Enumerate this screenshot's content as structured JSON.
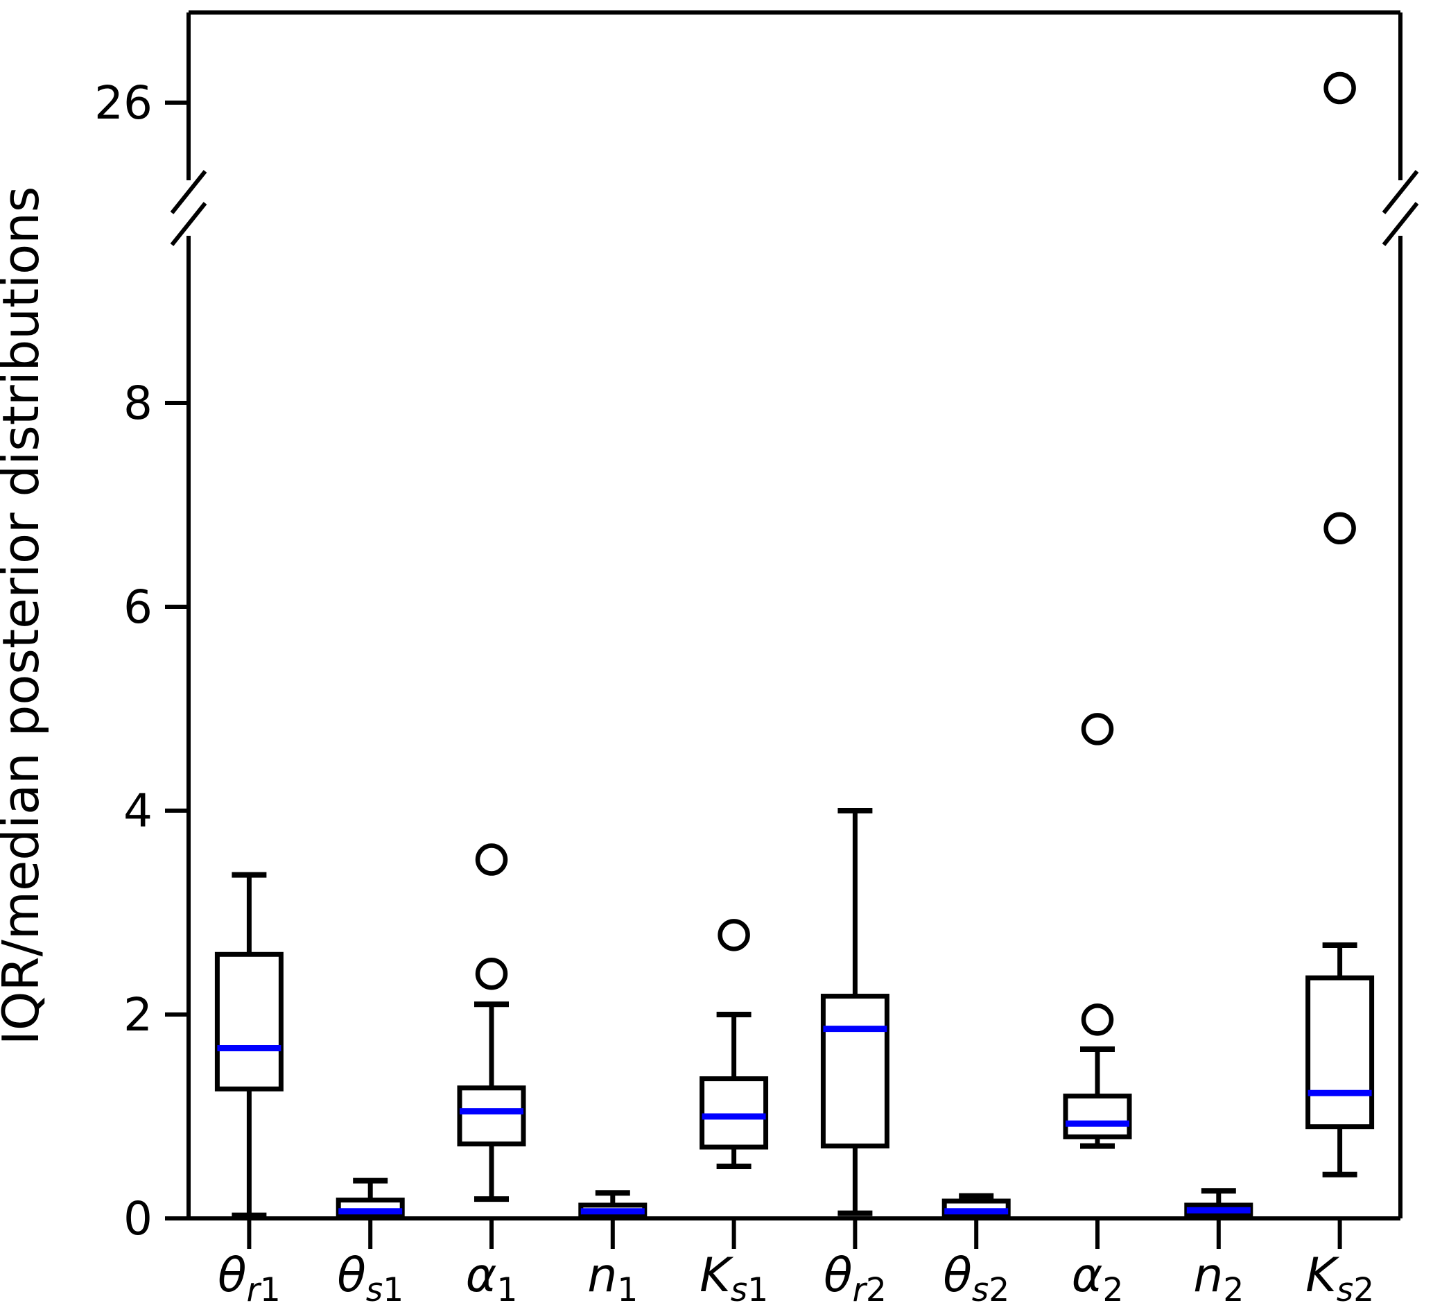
{
  "figure": {
    "ylabel": "IQR/median posterior distributions",
    "colors": {
      "box_stroke": "#000000",
      "median_line": "#0000ff",
      "background": "#ffffff",
      "axis": "#000000"
    }
  },
  "chart_data": {
    "type": "box",
    "title": "",
    "xlabel": "",
    "ylabel": "IQR/median posterior distributions",
    "grid": false,
    "legend": null,
    "axis_break": {
      "present": true,
      "lower_segment_ylim": [
        0,
        9.5
      ],
      "upper_segment_ticks": [
        26
      ],
      "lower_segment_ticks": [
        0,
        2,
        4,
        6,
        8
      ]
    },
    "categories": [
      "θr1",
      "θs1",
      "α1",
      "n1",
      "Ks1",
      "θr2",
      "θs2",
      "α2",
      "n2",
      "Ks2"
    ],
    "category_labels": [
      {
        "base": "θ",
        "subItalic": "r",
        "subNum": "1"
      },
      {
        "base": "θ",
        "subItalic": "s",
        "subNum": "1"
      },
      {
        "base": "α",
        "subItalic": "",
        "subNum": "1"
      },
      {
        "base": "n",
        "subItalic": "",
        "subNum": "1"
      },
      {
        "base": "K",
        "subItalic": "s",
        "subNum": "1"
      },
      {
        "base": "θ",
        "subItalic": "r",
        "subNum": "2"
      },
      {
        "base": "θ",
        "subItalic": "s",
        "subNum": "2"
      },
      {
        "base": "α",
        "subItalic": "",
        "subNum": "2"
      },
      {
        "base": "n",
        "subItalic": "",
        "subNum": "2"
      },
      {
        "base": "K",
        "subItalic": "s",
        "subNum": "2"
      }
    ],
    "series": [
      {
        "name": "θr1",
        "whisker_low": 0.03,
        "q1": 1.27,
        "median": 1.67,
        "q3": 2.59,
        "whisker_high": 3.37,
        "outliers": []
      },
      {
        "name": "θs1",
        "whisker_low": 0.01,
        "q1": 0.03,
        "median": 0.07,
        "q3": 0.18,
        "whisker_high": 0.37,
        "outliers": []
      },
      {
        "name": "α1",
        "whisker_low": 0.19,
        "q1": 0.73,
        "median": 1.05,
        "q3": 1.28,
        "whisker_high": 2.1,
        "outliers": [
          2.4,
          3.52
        ]
      },
      {
        "name": "n1",
        "whisker_low": 0.01,
        "q1": 0.03,
        "median": 0.07,
        "q3": 0.13,
        "whisker_high": 0.25,
        "outliers": []
      },
      {
        "name": "Ks1",
        "whisker_low": 0.51,
        "q1": 0.7,
        "median": 1.0,
        "q3": 1.37,
        "whisker_high": 2.0,
        "outliers": [
          2.78
        ]
      },
      {
        "name": "θr2",
        "whisker_low": 0.05,
        "q1": 0.71,
        "median": 1.86,
        "q3": 2.18,
        "whisker_high": 4.0,
        "outliers": []
      },
      {
        "name": "θs2",
        "whisker_low": 0.01,
        "q1": 0.02,
        "median": 0.07,
        "q3": 0.17,
        "whisker_high": 0.22,
        "outliers": []
      },
      {
        "name": "α2",
        "whisker_low": 0.71,
        "q1": 0.8,
        "median": 0.93,
        "q3": 1.2,
        "whisker_high": 1.66,
        "outliers": [
          1.95,
          4.8
        ]
      },
      {
        "name": "n2",
        "whisker_low": 0.01,
        "q1": 0.03,
        "median": 0.08,
        "q3": 0.13,
        "whisker_high": 0.27,
        "outliers": []
      },
      {
        "name": "Ks2",
        "whisker_low": 0.43,
        "q1": 0.9,
        "median": 1.23,
        "q3": 2.36,
        "whisker_high": 2.68,
        "outliers": [
          6.77,
          26.3
        ]
      }
    ]
  }
}
